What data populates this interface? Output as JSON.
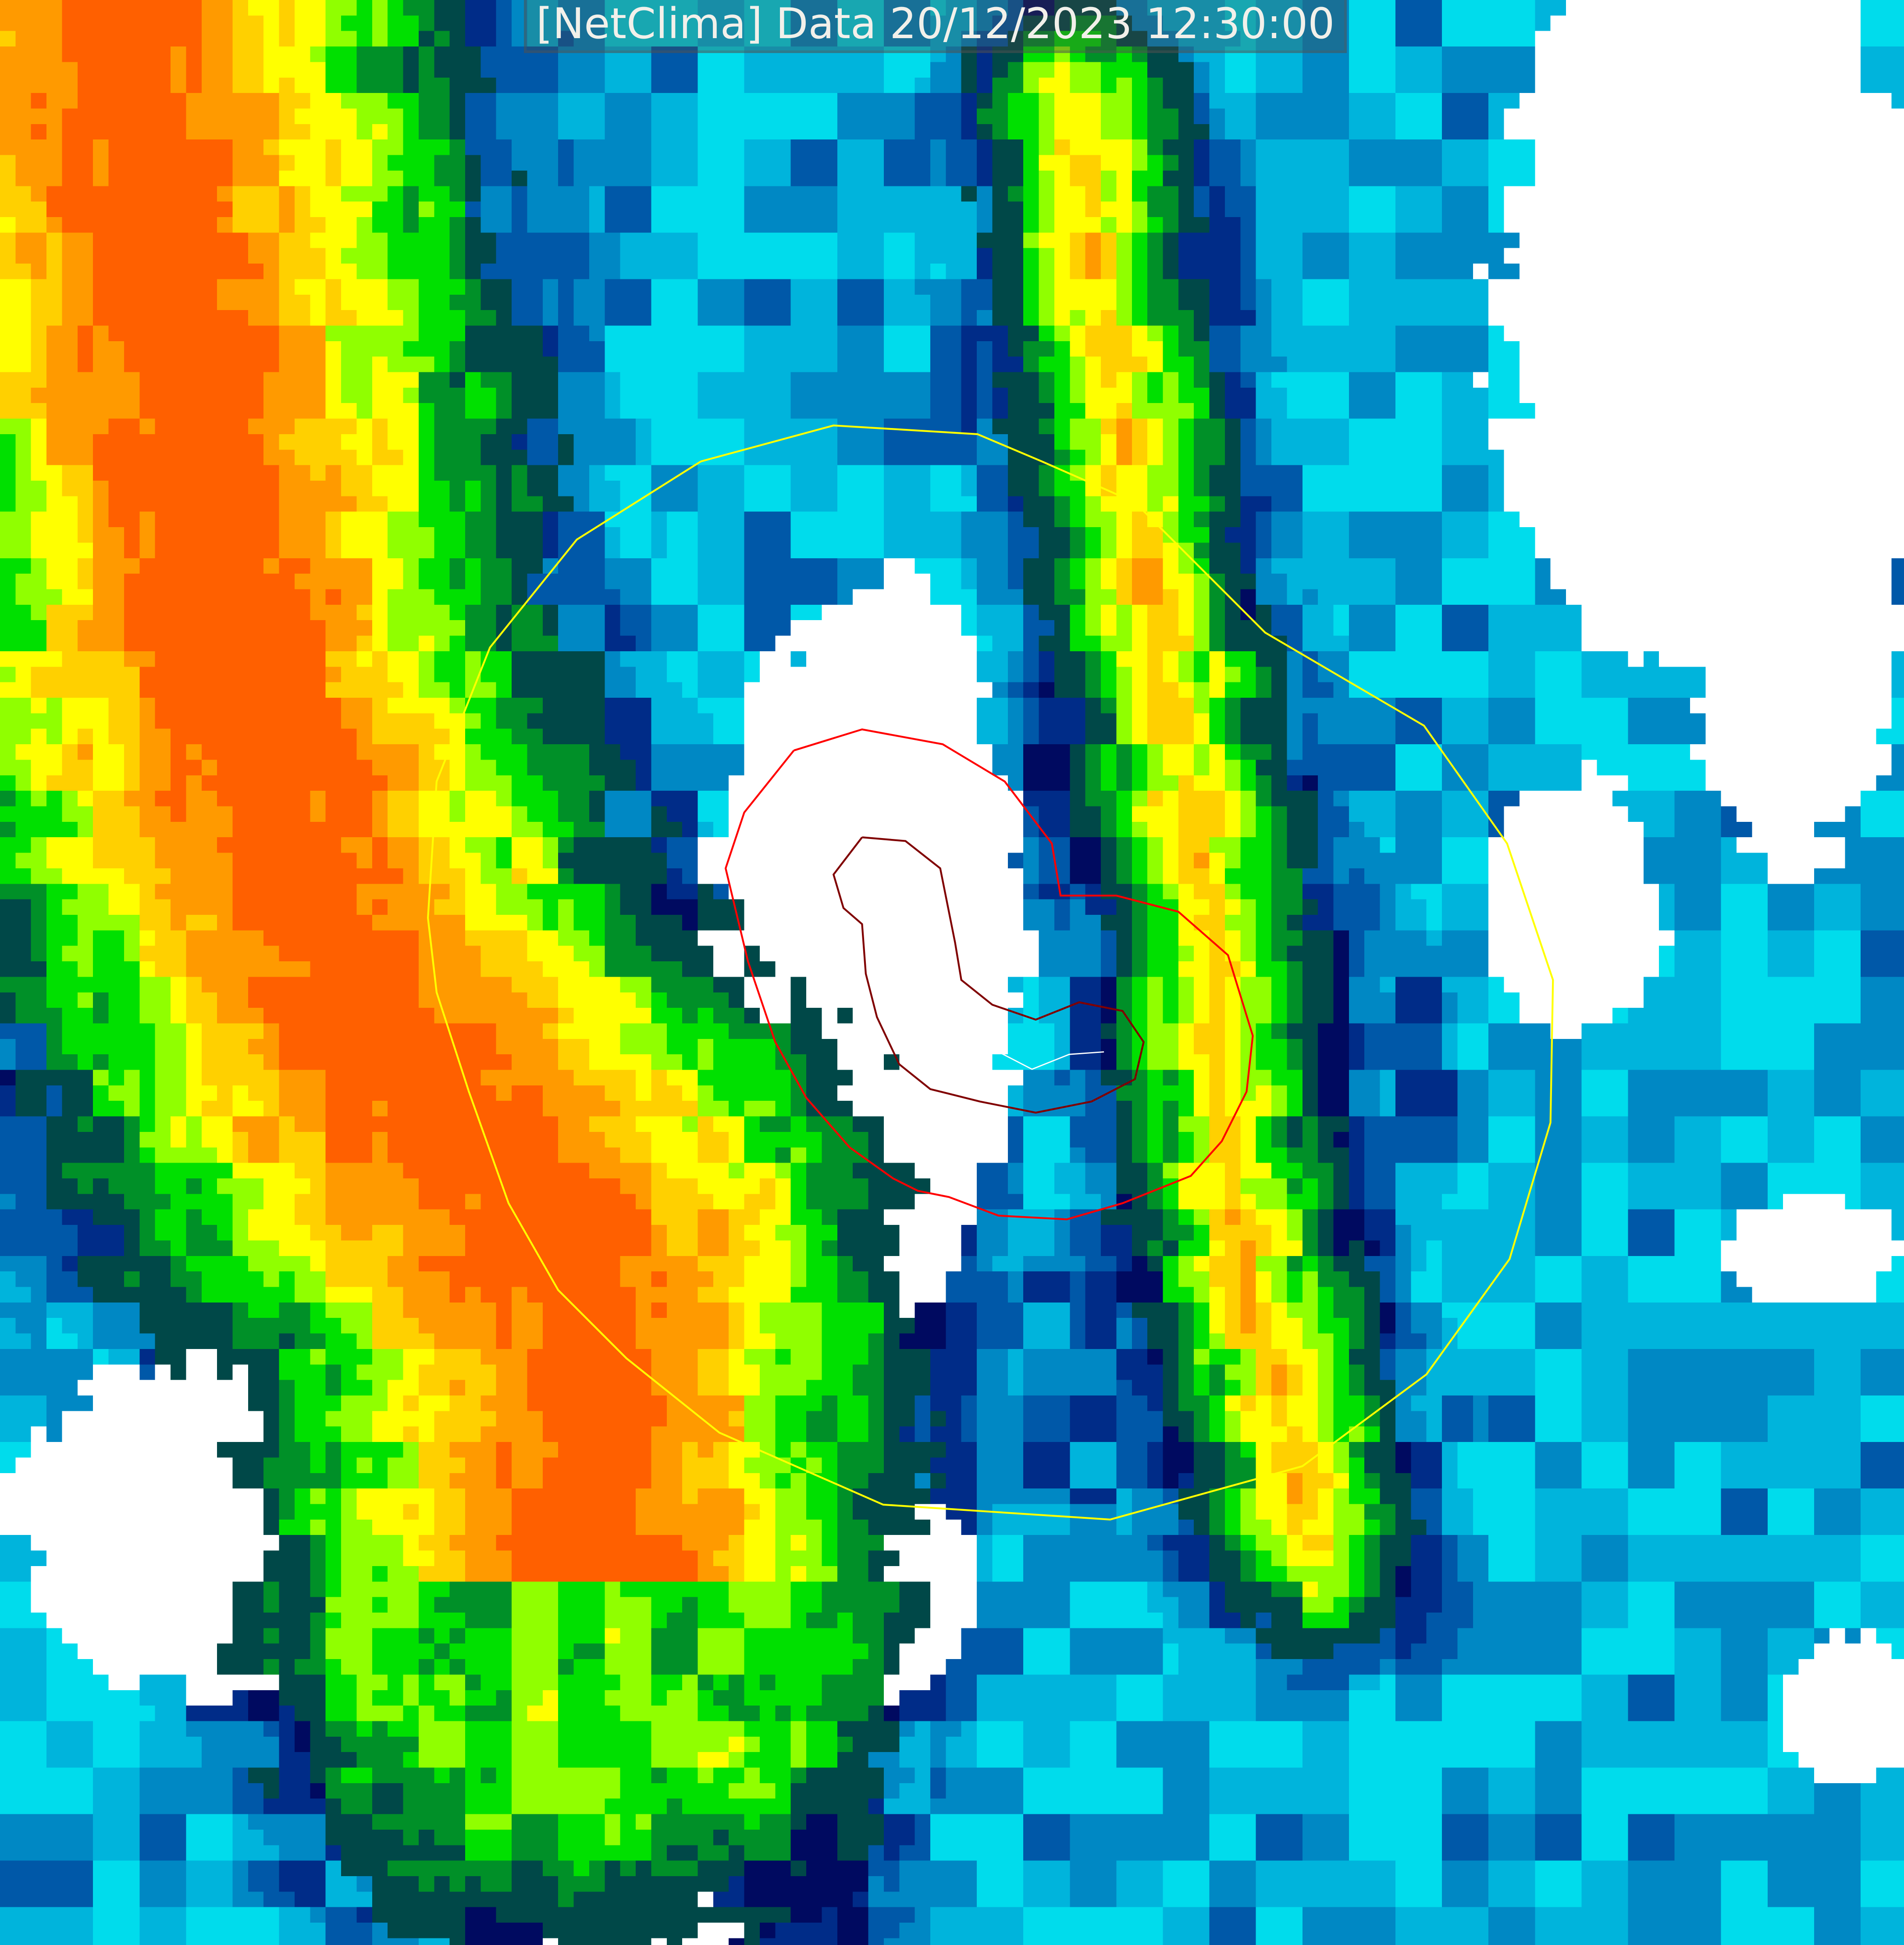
{
  "title": "[NetClima] Data 20/12/2023 12:30:00",
  "map": {
    "type": "satellite cloud-top temperature composite",
    "overlays": [
      "yellow-outer-contour",
      "red-contour",
      "dark-red-inner-contour",
      "white-track"
    ],
    "palette": [
      "#ffffff",
      "#00ffff",
      "#00dcec",
      "#00b4dc",
      "#0088c4",
      "#0058a8",
      "#002c88",
      "#000a60",
      "#004848",
      "#009028",
      "#00e000",
      "#90ff00",
      "#ffff00",
      "#ffd000",
      "#ff9a00",
      "#ff6000"
    ],
    "overlay_colors": {
      "outer": "#ffff00",
      "middle": "#ff0000",
      "inner": "#800000",
      "track": "#ffffff"
    }
  }
}
